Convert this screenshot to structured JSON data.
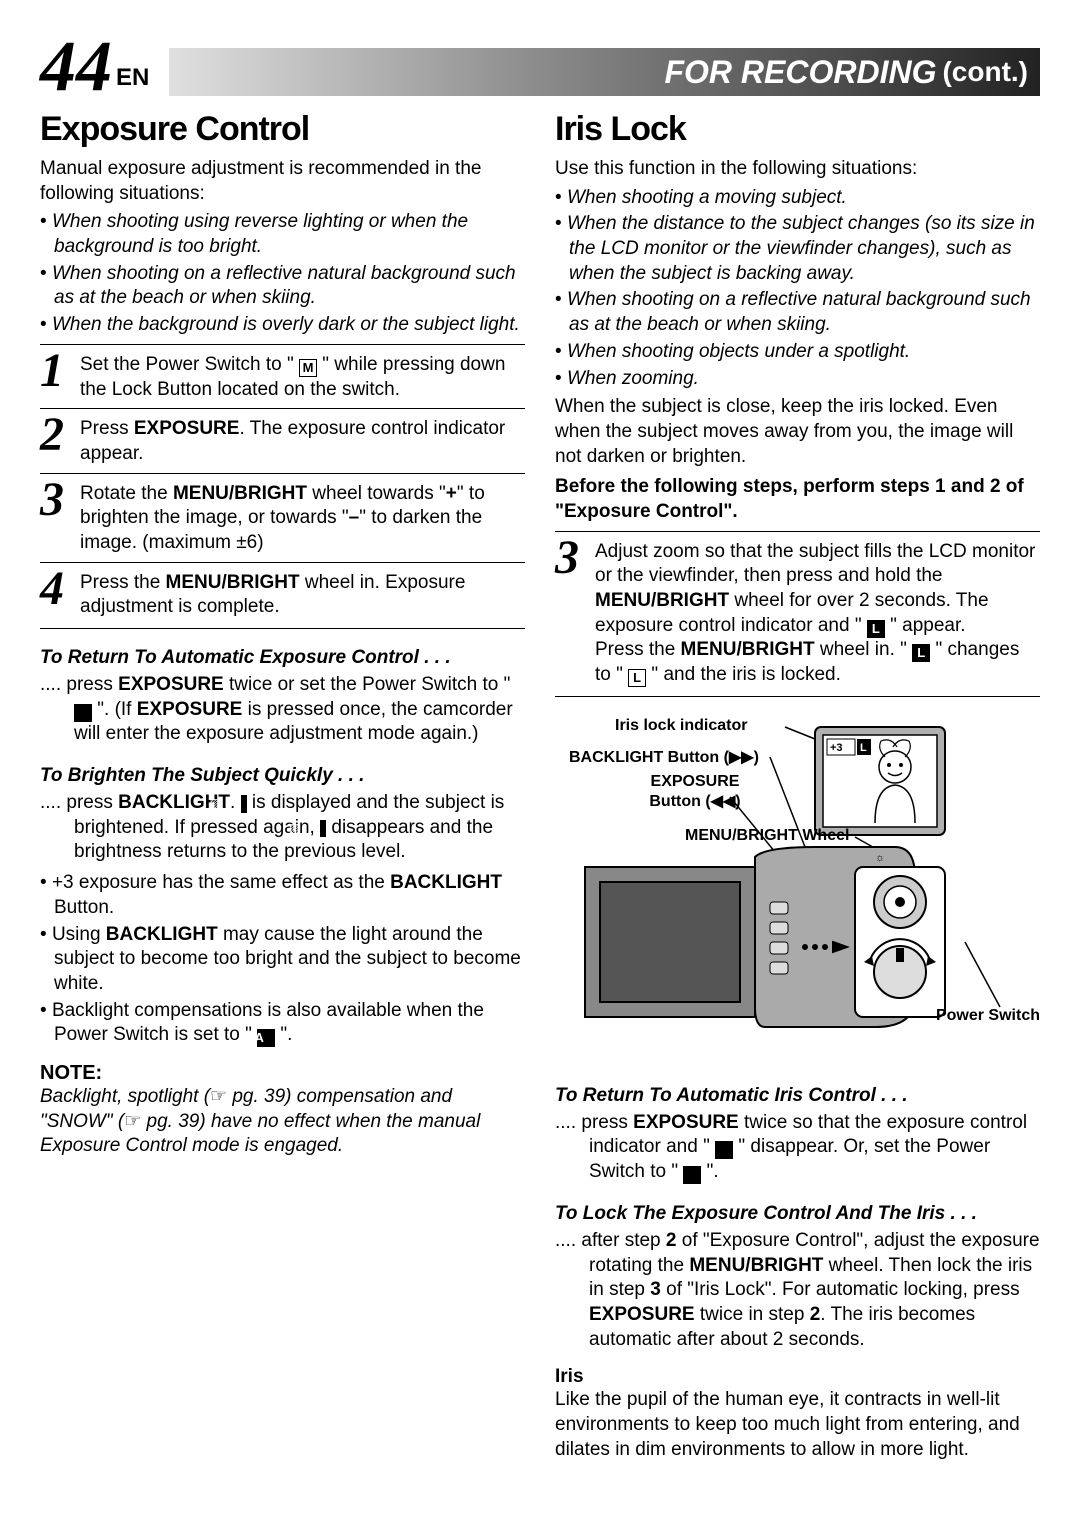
{
  "header": {
    "page_number": "44",
    "lang": "EN",
    "title": "FOR RECORDING",
    "cont": "(cont.)"
  },
  "left": {
    "heading": "Exposure Control",
    "intro": "Manual exposure adjustment is recommended in the following situations:",
    "bullets": [
      "When shooting using reverse lighting or when the background is too bright.",
      "When shooting on a reflective natural background such as at the beach or when skiing.",
      "When the background is overly dark or the subject light."
    ],
    "steps": [
      {
        "n": "1",
        "html": "Set the Power Switch to \" <span class='icon-box'>M</span> \" while pressing down the Lock Button located on the switch."
      },
      {
        "n": "2",
        "html": "Press <b>EXPOSURE</b>. The exposure control indicator appear."
      },
      {
        "n": "3",
        "html": "Rotate the <b>MENU/BRIGHT</b> wheel towards \"<b>+</b>\" to brighten the image, or towards \"<b>–</b>\" to darken the image. (maximum ±6)"
      },
      {
        "n": "4",
        "html": "Press the <b>MENU/BRIGHT</b> wheel in. Exposure adjustment is complete."
      }
    ],
    "tips": [
      {
        "head": "To Return To Automatic Exposure Control . . .",
        "body": ".... press <b>EXPOSURE</b> twice or set the Power Switch to \" <span class='icon-box inv'>A</span> \". (If <b>EXPOSURE</b> is pressed once, the camcorder will enter the exposure adjustment mode again.)"
      },
      {
        "head": "To Brighten The Subject Quickly . . .",
        "body": ".... press <b>BACKLIGHT</b>. <span class='icon-bl'>▨</span> is displayed and the subject is brightened. If pressed again, <span class='icon-bl'>▨</span> disappears and the brightness returns to the previous level."
      }
    ],
    "extra_bullets": [
      "+3 exposure has the same effect as the <b>BACKLIGHT</b> Button.",
      "Using <b>BACKLIGHT</b> may cause the light around the subject to become too bright and the subject to become white.",
      "Backlight compensations is also available when the Power Switch is set to \" <span class='icon-box inv'>A</span> \"."
    ],
    "note_head": "NOTE:",
    "note_body": "Backlight, spotlight (<span class='hand'>☞</span> pg. 39) compensation and \"SNOW\" (<span class='hand'>☞</span> pg. 39) have no effect when the manual Exposure Control mode is engaged."
  },
  "right": {
    "heading": "Iris Lock",
    "intro": "Use this function in the following situations:",
    "bullets": [
      "When shooting a moving subject.",
      "When the distance to the subject changes (so its size in the LCD monitor or the viewfinder changes), such as when the subject is backing away.",
      "When shooting on a reflective natural background such as at the beach or when skiing.",
      "When shooting objects under a spotlight.",
      "When zooming."
    ],
    "para": "When the subject is close, keep the iris locked. Even when the subject moves away from you, the image will not darken or brighten.",
    "before": "Before the following steps, perform steps 1 and 2 of \"Exposure Control\".",
    "step": {
      "n": "3",
      "html": "Adjust zoom so that the subject fills the LCD monitor or the viewfinder, then press and hold the <b>MENU/BRIGHT</b> wheel for over 2 seconds. The exposure control indicator and \" <span class='icon-box inv'>L</span> \" appear.<br>Press the <b>MENU/BRIGHT</b> wheel in. \" <span class='icon-box inv'>L</span> \" changes to \" <span class='icon-box'>L</span> \" and the iris is locked."
    },
    "diagram": {
      "labels": {
        "iris_lock": "Iris lock indicator",
        "backlight": "BACKLIGHT Button (▶▶)",
        "exposure": "EXPOSURE Button (◀◀)",
        "menu": "MENU/BRIGHT Wheel",
        "power": "Power Switch",
        "display_value": "+3 L"
      }
    },
    "tips": [
      {
        "head": "To Return To Automatic Iris Control . . .",
        "body": ".... press <b>EXPOSURE</b> twice so that the exposure control indicator and \" <span class='icon-box inv'>L</span> \" disappear. Or, set the Power Switch to \" <span class='icon-box inv'>A</span> \"."
      },
      {
        "head": "To Lock The Exposure Control And The Iris . . .",
        "body": ".... after step <b>2</b> of \"Exposure Control\", adjust the exposure rotating the <b>MENU/BRIGHT</b> wheel. Then lock the iris in step <b>3</b> of \"Iris Lock\". For automatic locking, press <b>EXPOSURE</b> twice in step <b>2</b>. The iris becomes automatic after about 2 seconds."
      }
    ],
    "iris_head": "Iris",
    "iris_body": "Like the pupil of the human eye, it contracts in well-lit environments to keep too much light from entering, and dilates in dim environments to allow in more light."
  }
}
